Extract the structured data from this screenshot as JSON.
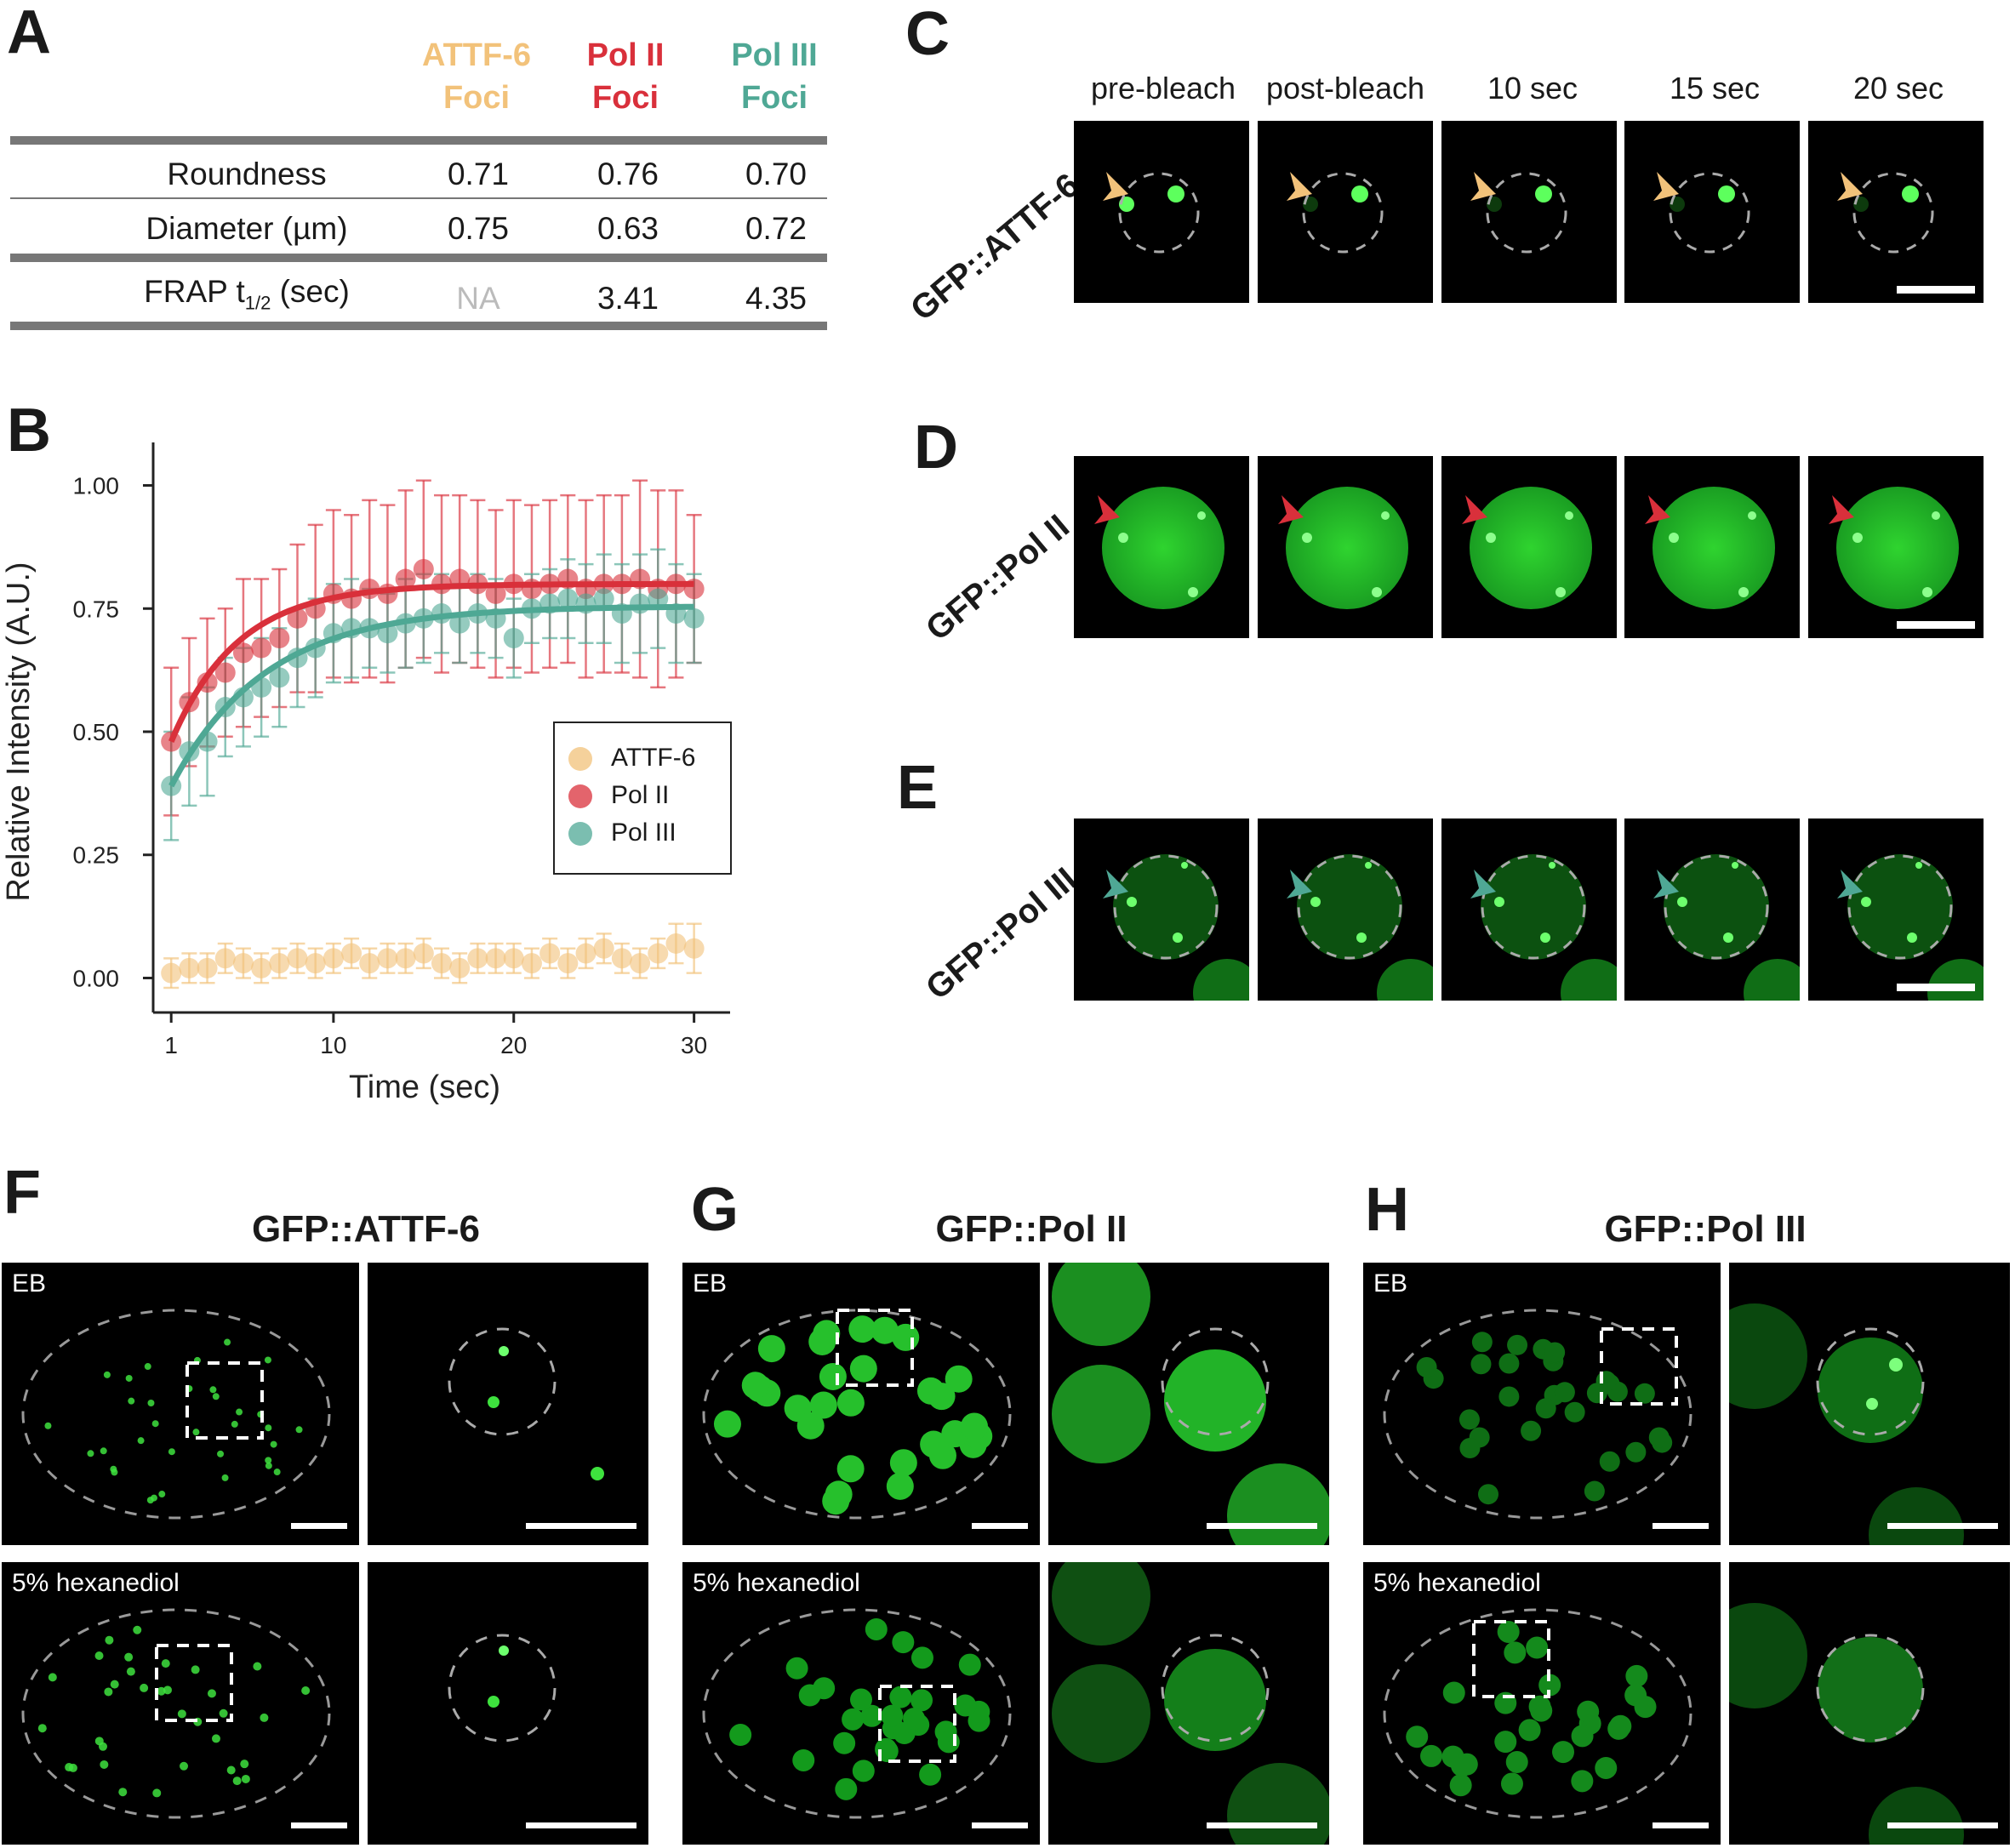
{
  "panel_letters": {
    "a": "A",
    "b": "B",
    "c": "C",
    "d": "D",
    "e": "E",
    "f": "F",
    "g": "G",
    "h": "H"
  },
  "table": {
    "headers": [
      {
        "line1": "ATTF-6",
        "line2": "Foci",
        "color": "#f2c27a"
      },
      {
        "line1": "Pol II",
        "line2": "Foci",
        "color": "#d9303b"
      },
      {
        "line1": "Pol III",
        "line2": "Foci",
        "color": "#4fa895"
      }
    ],
    "rows": [
      {
        "label": "Roundness",
        "values": [
          "0.71",
          "0.76",
          "0.70"
        ]
      },
      {
        "label": "Diameter (µm)",
        "values": [
          "0.75",
          "0.63",
          "0.72"
        ]
      },
      {
        "label_main": "FRAP t",
        "label_sub": "1/2",
        "label_tail": " (sec)",
        "values": [
          "NA",
          "3.41",
          "4.35"
        ]
      }
    ]
  },
  "timepoints": [
    "pre-bleach",
    "post-bleach",
    "10 sec",
    "15 sec",
    "20 sec"
  ],
  "row_titles": {
    "c": "GFP::ATTF-6",
    "d": "GFP::Pol II",
    "e": "GFP::Pol III"
  },
  "conditions": {
    "f": "GFP::ATTF-6",
    "g": "GFP::Pol II",
    "h": "GFP::Pol III",
    "eb": "EB",
    "hexanediol": "5% hexanediol"
  },
  "colors": {
    "attf6": "#f2c27a",
    "polii": "#d9303b",
    "poliii": "#4fa895",
    "gfp": "#22c22a"
  },
  "chart_data": {
    "type": "scatter",
    "xlabel": "Time (sec)",
    "ylabel": "Relative Intensity (A.U.)",
    "xticks": [
      "1",
      "10",
      "20",
      "30"
    ],
    "yticks": [
      "0.00",
      "0.25",
      "0.50",
      "0.75",
      "1.00"
    ],
    "xlim": [
      0,
      32
    ],
    "ylim": [
      -0.07,
      1.07
    ],
    "legend_position": "center-right",
    "series": [
      {
        "name": "ATTF-6",
        "color": "#f2c27a",
        "x": [
          1,
          2,
          3,
          4,
          5,
          6,
          7,
          8,
          9,
          10,
          11,
          12,
          13,
          14,
          15,
          16,
          17,
          18,
          19,
          20,
          21,
          22,
          23,
          24,
          25,
          26,
          27,
          28,
          29,
          30
        ],
        "y": [
          0.01,
          0.02,
          0.02,
          0.04,
          0.03,
          0.02,
          0.03,
          0.04,
          0.03,
          0.04,
          0.05,
          0.03,
          0.04,
          0.04,
          0.05,
          0.03,
          0.02,
          0.04,
          0.04,
          0.04,
          0.03,
          0.05,
          0.03,
          0.05,
          0.06,
          0.04,
          0.03,
          0.05,
          0.07,
          0.06
        ],
        "err": [
          0.03,
          0.03,
          0.03,
          0.03,
          0.03,
          0.03,
          0.03,
          0.03,
          0.03,
          0.03,
          0.03,
          0.03,
          0.03,
          0.03,
          0.03,
          0.03,
          0.03,
          0.03,
          0.03,
          0.03,
          0.03,
          0.03,
          0.03,
          0.03,
          0.03,
          0.03,
          0.03,
          0.03,
          0.04,
          0.05
        ]
      },
      {
        "name": "Pol II",
        "color": "#d9303b",
        "x": [
          1,
          2,
          3,
          4,
          5,
          6,
          7,
          8,
          9,
          10,
          11,
          12,
          13,
          14,
          15,
          16,
          17,
          18,
          19,
          20,
          21,
          22,
          23,
          24,
          25,
          26,
          27,
          28,
          29,
          30
        ],
        "y": [
          0.48,
          0.56,
          0.6,
          0.62,
          0.66,
          0.67,
          0.69,
          0.73,
          0.75,
          0.78,
          0.77,
          0.79,
          0.78,
          0.81,
          0.83,
          0.8,
          0.81,
          0.8,
          0.78,
          0.8,
          0.79,
          0.8,
          0.81,
          0.79,
          0.8,
          0.8,
          0.81,
          0.79,
          0.8,
          0.79
        ],
        "err": [
          0.15,
          0.13,
          0.13,
          0.13,
          0.15,
          0.14,
          0.14,
          0.15,
          0.17,
          0.17,
          0.17,
          0.18,
          0.18,
          0.18,
          0.18,
          0.18,
          0.17,
          0.17,
          0.17,
          0.17,
          0.17,
          0.17,
          0.17,
          0.18,
          0.18,
          0.18,
          0.2,
          0.2,
          0.19,
          0.15
        ]
      },
      {
        "name": "Pol III",
        "color": "#4fa895",
        "x": [
          1,
          2,
          3,
          4,
          5,
          6,
          7,
          8,
          9,
          10,
          11,
          12,
          13,
          14,
          15,
          16,
          17,
          18,
          19,
          20,
          21,
          22,
          23,
          24,
          25,
          26,
          27,
          28,
          29,
          30
        ],
        "y": [
          0.39,
          0.46,
          0.48,
          0.55,
          0.57,
          0.59,
          0.61,
          0.65,
          0.67,
          0.7,
          0.71,
          0.71,
          0.7,
          0.72,
          0.73,
          0.74,
          0.72,
          0.74,
          0.73,
          0.69,
          0.75,
          0.76,
          0.77,
          0.76,
          0.77,
          0.74,
          0.76,
          0.77,
          0.74,
          0.73
        ],
        "err": [
          0.11,
          0.11,
          0.11,
          0.1,
          0.1,
          0.1,
          0.1,
          0.1,
          0.1,
          0.1,
          0.1,
          0.08,
          0.08,
          0.09,
          0.09,
          0.08,
          0.08,
          0.08,
          0.08,
          0.08,
          0.07,
          0.07,
          0.08,
          0.08,
          0.09,
          0.1,
          0.1,
          0.1,
          0.1,
          0.09
        ]
      }
    ]
  }
}
